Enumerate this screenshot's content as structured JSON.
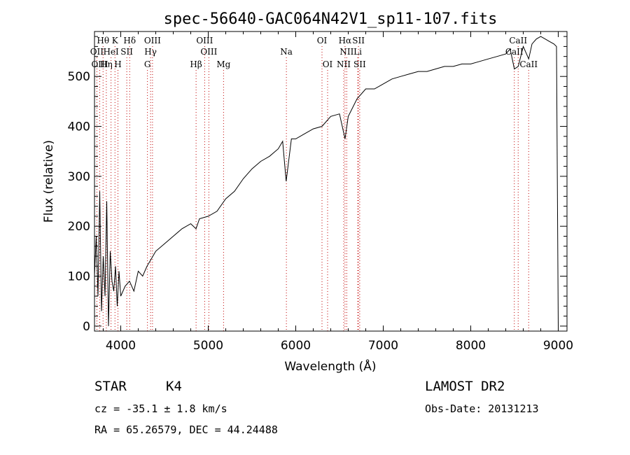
{
  "chart_data": {
    "type": "line",
    "title": "spec-56640-GAC064N42V1_sp11-107.fits",
    "xlabel": "Wavelength (Å)",
    "ylabel": "Flux (relative)",
    "xlim": [
      3700,
      9100
    ],
    "ylim": [
      -10,
      590
    ],
    "xticks": [
      4000,
      5000,
      6000,
      7000,
      8000,
      9000
    ],
    "yticks": [
      0,
      100,
      200,
      300,
      400,
      500
    ],
    "grid": false,
    "series": [
      {
        "x": [
          3700,
          3720,
          3740,
          3760,
          3780,
          3800,
          3820,
          3840,
          3860,
          3880,
          3900,
          3920,
          3940,
          3960,
          3980,
          4000,
          4050,
          4100,
          4150,
          4200,
          4250,
          4300,
          4350,
          4400,
          4500,
          4600,
          4700,
          4800,
          4860,
          4900,
          5000,
          5100,
          5200,
          5300,
          5400,
          5500,
          5600,
          5700,
          5800,
          5850,
          5890,
          5950,
          6000,
          6100,
          6200,
          6300,
          6400,
          6500,
          6563,
          6600,
          6700,
          6800,
          6900,
          7000,
          7100,
          7200,
          7300,
          7400,
          7500,
          7600,
          7700,
          7800,
          7900,
          8000,
          8100,
          8200,
          8300,
          8400,
          8450,
          8498,
          8542,
          8600,
          8662,
          8700,
          8750,
          8800,
          8850,
          8900,
          8950,
          8980,
          9000
        ],
        "y": [
          100,
          180,
          60,
          270,
          30,
          140,
          60,
          250,
          0,
          150,
          90,
          70,
          120,
          40,
          110,
          60,
          80,
          90,
          70,
          110,
          100,
          120,
          135,
          150,
          165,
          180,
          195,
          205,
          195,
          215,
          220,
          230,
          255,
          270,
          295,
          315,
          330,
          340,
          355,
          370,
          290,
          375,
          375,
          385,
          395,
          400,
          420,
          425,
          375,
          420,
          455,
          475,
          475,
          485,
          495,
          500,
          505,
          510,
          510,
          515,
          520,
          520,
          525,
          525,
          530,
          535,
          540,
          545,
          555,
          515,
          520,
          560,
          535,
          565,
          575,
          580,
          575,
          570,
          565,
          560,
          0
        ]
      }
    ],
    "line_markers": [
      {
        "label": "Hθ",
        "x": 3798,
        "row": 0,
        "color": "#000000"
      },
      {
        "label": "K",
        "x": 3934,
        "row": 0,
        "color": "#000000"
      },
      {
        "label": "Hδ",
        "x": 4102,
        "row": 0,
        "color": "#000000"
      },
      {
        "label": "OIII",
        "x": 4363,
        "row": 0,
        "color": "#000000"
      },
      {
        "label": "OIII",
        "x": 4959,
        "row": 0,
        "color": "#000000"
      },
      {
        "label": "OI",
        "x": 6300,
        "row": 0,
        "color": "#000000"
      },
      {
        "label": "Hα",
        "x": 6563,
        "row": 0,
        "color": "#000000"
      },
      {
        "label": "SII",
        "x": 6717,
        "row": 0,
        "color": "#000000"
      },
      {
        "label": "CaII",
        "x": 8542,
        "row": 0,
        "color": "#000000"
      },
      {
        "label": "OII",
        "x": 3727,
        "row": 1,
        "color": "#000000"
      },
      {
        "label": "HeI",
        "x": 3889,
        "row": 1,
        "color": "#000000"
      },
      {
        "label": "SII",
        "x": 4069,
        "row": 1,
        "color": "#000000"
      },
      {
        "label": "Hγ",
        "x": 4341,
        "row": 1,
        "color": "#000000"
      },
      {
        "label": "OIII",
        "x": 5007,
        "row": 1,
        "color": "#000000"
      },
      {
        "label": "Na",
        "x": 5893,
        "row": 1,
        "color": "#000000"
      },
      {
        "label": "NII",
        "x": 6583,
        "row": 1,
        "color": "#000000"
      },
      {
        "label": "Li",
        "x": 6708,
        "row": 1,
        "color": "#000000"
      },
      {
        "label": "CaII",
        "x": 8498,
        "row": 1,
        "color": "#000000"
      },
      {
        "label": "OIII",
        "x": 3760,
        "row": 2,
        "color": "#000000"
      },
      {
        "label": "Hη",
        "x": 3835,
        "row": 2,
        "color": "#000000"
      },
      {
        "label": "H",
        "x": 3968,
        "row": 2,
        "color": "#000000"
      },
      {
        "label": "G",
        "x": 4305,
        "row": 2,
        "color": "#000000"
      },
      {
        "label": "Hβ",
        "x": 4861,
        "row": 2,
        "color": "#000000"
      },
      {
        "label": "Mg",
        "x": 5175,
        "row": 2,
        "color": "#000000"
      },
      {
        "label": "OI",
        "x": 6364,
        "row": 2,
        "color": "#000000"
      },
      {
        "label": "NII",
        "x": 6548,
        "row": 2,
        "color": "#000000"
      },
      {
        "label": "SII",
        "x": 6731,
        "row": 2,
        "color": "#000000"
      },
      {
        "label": "CaII",
        "x": 8662,
        "row": 2,
        "color": "#000000"
      }
    ],
    "marker_line_color": "#c00000"
  },
  "info": {
    "class_label": "STAR",
    "subclass_label": "K4",
    "survey": "LAMOST DR2",
    "cz": "cz = -35.1 ± 1.8 km/s",
    "obs_date": "Obs-Date: 20131213",
    "coords": "RA =  65.26579, DEC =  44.24488"
  }
}
